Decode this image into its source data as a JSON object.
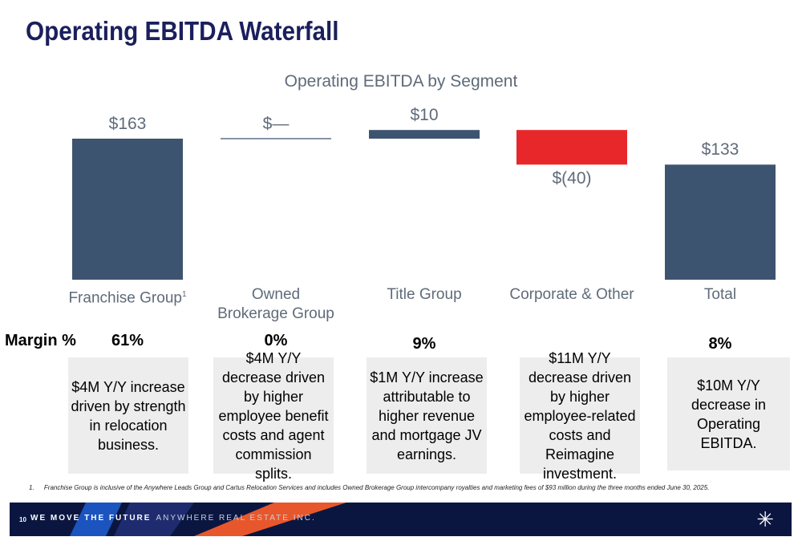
{
  "page_title": "Operating EBITDA Waterfall",
  "margin_heading": "Margin %",
  "chart_data": {
    "type": "bar",
    "subtype": "waterfall",
    "title": "Operating EBITDA by Segment",
    "categories": [
      "Franchise Group",
      "Owned Brokerage Group",
      "Title Group",
      "Corporate & Other",
      "Total"
    ],
    "category_superscripts": [
      "1",
      "",
      "",
      "",
      ""
    ],
    "values": [
      163,
      0,
      10,
      -40,
      133
    ],
    "value_labels": [
      "$163",
      "$—",
      "$10",
      "$(40)",
      "$133"
    ],
    "margins": [
      "61%",
      "0%",
      "9%",
      "",
      "8%"
    ],
    "ylim": [
      0,
      175
    ],
    "xlabel": "",
    "ylabel": "",
    "grid": false,
    "colors": {
      "bar": "#3d5470",
      "negative": "#e8272b",
      "zero_line": "#3d5470"
    }
  },
  "notes": [
    "$4M Y/Y increase driven by strength in relocation business.",
    "$4M Y/Y decrease driven by higher employee benefit costs and agent commission splits.",
    "$1M Y/Y increase attributable to higher revenue and mortgage JV earnings.",
    "$11M Y/Y decrease driven by higher employee-related costs and Reimagine investment.",
    "$10M Y/Y decrease in Operating EBITDA."
  ],
  "footnote": {
    "number": "1.",
    "text": "Franchise Group is inclusive of the Anywhere Leads Group and Cartus Relocation Services and includes Owned Brokerage Group intercompany royalties and marketing fees of $93 million during the three months ended June 30, 2025."
  },
  "footer": {
    "page_number": "10",
    "tagline": "WE MOVE THE FUTURE",
    "company": "ANYWHERE REAL ESTATE INC.",
    "logo_icon": "anywhere-asterisk-logo-icon"
  }
}
